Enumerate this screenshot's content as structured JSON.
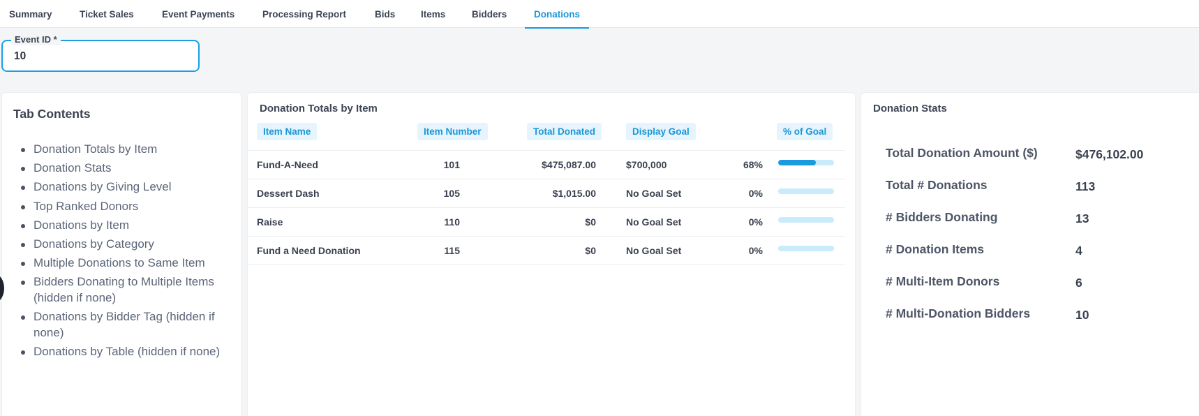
{
  "tabs": [
    {
      "label": "Summary",
      "active": false
    },
    {
      "label": "Ticket Sales",
      "active": false
    },
    {
      "label": "Event Payments",
      "active": false
    },
    {
      "label": "Processing Report",
      "active": false
    },
    {
      "label": "Bids",
      "active": false
    },
    {
      "label": "Items",
      "active": false
    },
    {
      "label": "Bidders",
      "active": false
    },
    {
      "label": "Donations",
      "active": true
    }
  ],
  "event_id_field": {
    "label": "Event ID *",
    "value": "10"
  },
  "toc": {
    "title": "Tab Contents",
    "items": [
      "Donation Totals by Item",
      "Donation Stats",
      "Donations by Giving Level",
      "Top Ranked Donors",
      "Donations by Item",
      "Donations by Category",
      "Multiple Donations to Same Item",
      "Bidders Donating to Multiple Items (hidden if none)",
      "Donations by Bidder Tag (hidden if none)",
      "Donations by Table (hidden if none)"
    ]
  },
  "donation_totals": {
    "title": "Donation Totals by Item",
    "columns": [
      "Item Name",
      "Item Number",
      "Total Donated",
      "Display Goal",
      "% of Goal"
    ],
    "rows": [
      {
        "name": "Fund-A-Need",
        "number": "101",
        "total": "$475,087.00",
        "goal": "$700,000",
        "pct_label": "68%",
        "pct": 0.68
      },
      {
        "name": "Dessert Dash",
        "number": "105",
        "total": "$1,015.00",
        "goal": "No Goal Set",
        "pct_label": "0%",
        "pct": 0
      },
      {
        "name": "Raise",
        "number": "110",
        "total": "$0",
        "goal": "No Goal Set",
        "pct_label": "0%",
        "pct": 0
      },
      {
        "name": "Fund a Need Donation",
        "number": "115",
        "total": "$0",
        "goal": "No Goal Set",
        "pct_label": "0%",
        "pct": 0
      }
    ]
  },
  "donation_stats": {
    "title": "Donation Stats",
    "items": [
      {
        "label": "Total Donation Amount ($)",
        "value": "$476,102.00"
      },
      {
        "label": "Total # Donations",
        "value": "113"
      },
      {
        "label": "# Bidders Donating",
        "value": "13"
      },
      {
        "label": "# Donation Items",
        "value": "4"
      },
      {
        "label": "# Multi-Item Donors",
        "value": "6"
      },
      {
        "label": "# Multi-Donation Bidders",
        "value": "10"
      }
    ]
  },
  "colors": {
    "accent": "#1a96d8",
    "bar_track": "#c9ebfa",
    "bar_fill": "#1a9be0"
  }
}
